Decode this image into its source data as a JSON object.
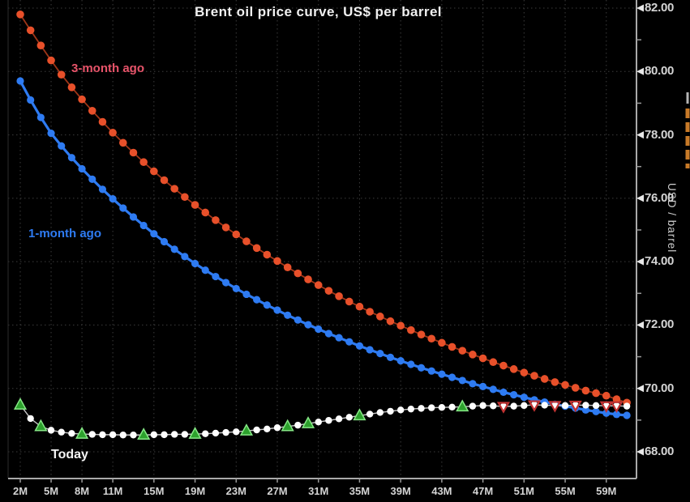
{
  "header": {
    "title": "Brent oil price curve, US$ per barrel"
  },
  "axis": {
    "y_label": "USD / barrel",
    "y_ticks": [
      "82.00",
      "80.00",
      "78.00",
      "76.00",
      "74.00",
      "72.00",
      "70.00",
      "68.00"
    ],
    "x_ticks": [
      "2M",
      "5M",
      "8M",
      "11M",
      "15M",
      "19M",
      "23M",
      "27M",
      "31M",
      "35M",
      "39M",
      "43M",
      "47M",
      "51M",
      "55M",
      "59M"
    ]
  },
  "series_labels": {
    "three_month": "3-month ago",
    "one_month": "1-month ago",
    "today": "Today"
  },
  "colors": {
    "background": "#000000",
    "grid": "#3c3c3c",
    "axis": "#a9a9a9",
    "tick_text": "#d4d4d4",
    "three_month_dot": "#e8502a",
    "three_month_line": "#9e3518",
    "three_month_label": "#e8546a",
    "one_month": "#2e7bf2",
    "today_dot": "#ffffff",
    "today_line": "#c8c8c8",
    "green_marker": "#2da12d",
    "green_marker_edge": "#86e886",
    "red_marker": "#c23232",
    "orange_indicator": "#c87a28"
  },
  "chart_data": {
    "type": "line",
    "title": "Brent oil price curve, US$ per barrel",
    "ylabel": "USD / barrel",
    "ylim": [
      67.0,
      82.3
    ],
    "grid": true,
    "x_unit_label": "M",
    "x": [
      2,
      3,
      4,
      5,
      6,
      7,
      8,
      9,
      10,
      11,
      12,
      13,
      14,
      15,
      16,
      17,
      18,
      19,
      20,
      21,
      22,
      23,
      24,
      25,
      26,
      27,
      28,
      29,
      30,
      31,
      32,
      33,
      34,
      35,
      36,
      37,
      38,
      39,
      40,
      41,
      42,
      43,
      44,
      45,
      46,
      47,
      48,
      49,
      50,
      51,
      52,
      53,
      54,
      55,
      56,
      57,
      58,
      59,
      60,
      61
    ],
    "x_tick_positions": [
      2,
      5,
      8,
      11,
      15,
      19,
      23,
      27,
      31,
      35,
      39,
      43,
      47,
      51,
      55,
      59
    ],
    "y_tick_values": [
      82,
      80,
      78,
      76,
      74,
      72,
      70,
      68
    ],
    "series": [
      {
        "name": "3-month ago",
        "marker": "circle",
        "values": [
          81.8,
          81.3,
          80.82,
          80.35,
          79.9,
          79.5,
          79.12,
          78.76,
          78.41,
          78.07,
          77.75,
          77.44,
          77.14,
          76.85,
          76.57,
          76.3,
          76.04,
          75.79,
          75.55,
          75.31,
          75.08,
          74.86,
          74.64,
          74.43,
          74.22,
          74.02,
          73.82,
          73.63,
          73.44,
          73.26,
          73.08,
          72.91,
          72.74,
          72.58,
          72.42,
          72.27,
          72.12,
          71.98,
          71.84,
          71.7,
          71.57,
          71.44,
          71.31,
          71.19,
          71.07,
          70.95,
          70.83,
          70.72,
          70.61,
          70.5,
          70.4,
          70.3,
          70.2,
          70.11,
          70.02,
          69.93,
          69.85,
          69.77,
          69.66,
          69.55
        ]
      },
      {
        "name": "1-month ago",
        "marker": "circle",
        "values": [
          79.7,
          79.1,
          78.55,
          78.05,
          77.65,
          77.28,
          76.93,
          76.6,
          76.28,
          75.98,
          75.69,
          75.41,
          75.14,
          74.88,
          74.63,
          74.39,
          74.16,
          73.94,
          73.73,
          73.53,
          73.34,
          73.15,
          72.97,
          72.8,
          72.63,
          72.47,
          72.31,
          72.16,
          72.01,
          71.87,
          71.73,
          71.6,
          71.47,
          71.34,
          71.22,
          71.1,
          70.98,
          70.87,
          70.76,
          70.65,
          70.55,
          70.45,
          70.35,
          70.25,
          70.15,
          70.06,
          69.97,
          69.88,
          69.8,
          69.72,
          69.64,
          69.57,
          69.5,
          69.44,
          69.38,
          69.32,
          69.27,
          69.22,
          69.18,
          69.15
        ]
      },
      {
        "name": "Today",
        "marker": "circle",
        "values": [
          69.48,
          69.05,
          68.8,
          68.68,
          68.62,
          68.58,
          68.56,
          68.55,
          68.54,
          68.54,
          68.53,
          68.53,
          68.53,
          68.54,
          68.54,
          68.55,
          68.55,
          68.56,
          68.57,
          68.59,
          68.61,
          68.63,
          68.66,
          68.69,
          68.72,
          68.76,
          68.8,
          68.84,
          68.89,
          68.94,
          68.99,
          69.04,
          69.09,
          69.14,
          69.19,
          69.24,
          69.28,
          69.32,
          69.35,
          69.37,
          69.39,
          69.4,
          69.41,
          69.42,
          69.44,
          69.46,
          69.45,
          69.43,
          69.44,
          69.46,
          69.48,
          69.47,
          69.46,
          69.46,
          69.47,
          69.47,
          69.46,
          69.45,
          69.45,
          69.44
        ],
        "up_triangle_x": [
          2,
          4,
          8,
          14,
          19,
          24,
          28,
          30,
          35,
          45
        ],
        "down_triangle_x": [
          49,
          52,
          54,
          56,
          59,
          60
        ]
      }
    ],
    "legend_position": "annotations-on-chart"
  }
}
